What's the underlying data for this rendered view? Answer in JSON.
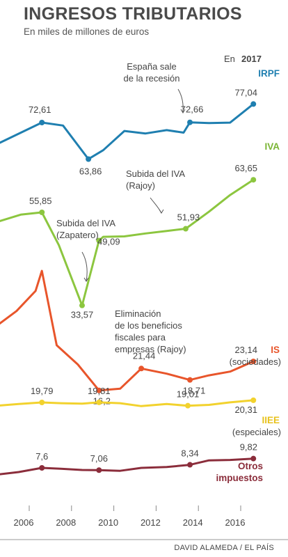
{
  "header": {
    "title": "INGRESOS TRIBUTARIOS",
    "subtitle": "En miles de millones de euros"
  },
  "credit": "DAVID ALAMEDA / EL PAÍS",
  "chart_data": {
    "type": "line",
    "title": "INGRESOS TRIBUTARIOS",
    "subtitle": "En miles de millones de euros",
    "year_header": {
      "prefix": "En",
      "year": "2017"
    },
    "x_ticks": [
      "2006",
      "2008",
      "2010",
      "2012",
      "2014",
      "2016"
    ],
    "x": [
      "2004-I",
      "2004-II",
      "2005-I",
      "2005-II",
      "2006-I",
      "2006-II",
      "2007-I",
      "2007-II",
      "2008-I",
      "2008-II",
      "2009-I",
      "2009-II",
      "2010-I",
      "2010-II",
      "2011-I",
      "2011-II",
      "2012-I",
      "2012-II",
      "2013-I",
      "2013-II",
      "2014-I",
      "2014-II",
      "2015-I",
      "2015-II",
      "2016-I",
      "2016-II"
    ],
    "series": [
      {
        "key": "irpf",
        "name": "IRPF",
        "color": "#1f7fb0",
        "points": [
          [
            2004.5,
            67.5
          ],
          [
            2006.6,
            72.61
          ],
          [
            2007.6,
            71.9
          ],
          [
            2008.8,
            63.86
          ],
          [
            2009.5,
            66.0
          ],
          [
            2010.5,
            70.6
          ],
          [
            2011.5,
            70.0
          ],
          [
            2012.5,
            70.8
          ],
          [
            2013.3,
            70.2
          ],
          [
            2013.6,
            72.66
          ],
          [
            2014.5,
            72.5
          ],
          [
            2015.5,
            72.6
          ],
          [
            2016.6,
            77.04
          ]
        ],
        "labeled": [
          [
            2006.6,
            "72,61"
          ],
          [
            2008.8,
            "63,86"
          ],
          [
            2013.6,
            "72,66"
          ],
          [
            2016.6,
            "77,04"
          ]
        ]
      },
      {
        "key": "iva",
        "name": "IVA",
        "color": "#8cc63f",
        "points": [
          [
            2004.5,
            53.6
          ],
          [
            2005.6,
            55.3
          ],
          [
            2006.6,
            55.85
          ],
          [
            2007.4,
            48.0
          ],
          [
            2008.5,
            33.57
          ],
          [
            2009.3,
            49.09
          ],
          [
            2009.5,
            50.0
          ],
          [
            2010.5,
            50.1
          ],
          [
            2011.5,
            50.8
          ],
          [
            2012.5,
            51.4
          ],
          [
            2013.4,
            51.93
          ],
          [
            2014.5,
            56.0
          ],
          [
            2015.5,
            60.0
          ],
          [
            2016.6,
            63.65
          ]
        ],
        "labeled": [
          [
            2006.6,
            "55,85"
          ],
          [
            2008.5,
            "33,57"
          ],
          [
            2009.3,
            "49,09"
          ],
          [
            2013.4,
            "51,93"
          ],
          [
            2016.6,
            "63,65"
          ]
        ]
      },
      {
        "key": "is",
        "name": "IS",
        "sublabel": "(sociedades)",
        "color": "#e8552b",
        "points": [
          [
            2004.5,
            31.8
          ],
          [
            2005.4,
            35.2
          ],
          [
            2006.3,
            40.0
          ],
          [
            2006.6,
            44.82
          ],
          [
            2007.3,
            27.0
          ],
          [
            2008.3,
            22.4
          ],
          [
            2009.3,
            16.2
          ],
          [
            2010.3,
            16.6
          ],
          [
            2011.3,
            21.44
          ],
          [
            2012.5,
            20.2
          ],
          [
            2013.6,
            18.71
          ],
          [
            2014.5,
            19.8
          ],
          [
            2015.5,
            20.7
          ],
          [
            2016.6,
            23.14
          ]
        ],
        "labeled": [
          [
            2009.3,
            "16,2"
          ],
          [
            2011.3,
            "21,44"
          ],
          [
            2013.6,
            "18,71"
          ],
          [
            2016.6,
            "23,14"
          ]
        ]
      },
      {
        "key": "iiee",
        "name": "IIEE",
        "sublabel": "(especiales)",
        "color": "#f2d22e",
        "points": [
          [
            2004.5,
            19.0
          ],
          [
            2005.5,
            19.4
          ],
          [
            2006.6,
            19.79
          ],
          [
            2007.5,
            19.6
          ],
          [
            2008.5,
            19.5
          ],
          [
            2009.3,
            19.81
          ],
          [
            2010.3,
            19.6
          ],
          [
            2011.3,
            18.9
          ],
          [
            2012.5,
            19.4
          ],
          [
            2013.5,
            19.01
          ],
          [
            2014.5,
            19.2
          ],
          [
            2015.5,
            19.8
          ],
          [
            2016.6,
            20.31
          ]
        ],
        "labeled": [
          [
            2006.6,
            "19,79"
          ],
          [
            2009.3,
            "19,81"
          ],
          [
            2013.5,
            "19,01"
          ],
          [
            2016.6,
            "20,31"
          ]
        ]
      },
      {
        "key": "otros",
        "name": "Otros impuestos",
        "color": "#8b2d3b",
        "points": [
          [
            2004.5,
            6.0
          ],
          [
            2005.5,
            6.6
          ],
          [
            2006.6,
            7.6
          ],
          [
            2007.5,
            7.4
          ],
          [
            2008.5,
            7.1
          ],
          [
            2009.3,
            7.06
          ],
          [
            2010.3,
            6.9
          ],
          [
            2011.3,
            7.6
          ],
          [
            2012.5,
            7.8
          ],
          [
            2013.6,
            8.34
          ],
          [
            2014.5,
            9.4
          ],
          [
            2015.5,
            9.5
          ],
          [
            2016.6,
            9.82
          ]
        ],
        "labeled": [
          [
            2006.6,
            "7,6"
          ],
          [
            2009.3,
            "7,06"
          ],
          [
            2013.6,
            "8,34"
          ],
          [
            2016.6,
            "9,82"
          ]
        ]
      }
    ],
    "annotations": [
      {
        "key": "recesion",
        "lines": [
          "España sale",
          "de la recesión"
        ]
      },
      {
        "key": "iva_rajoy",
        "lines": [
          "Subida del IVA",
          "(Rajoy)"
        ]
      },
      {
        "key": "iva_zapatero",
        "lines": [
          "Subida del IVA",
          "(Zapatero)"
        ]
      },
      {
        "key": "beneficios",
        "lines": [
          "Eliminación",
          "de los beneficios",
          "fiscales para",
          "empresas (Rajoy)"
        ]
      }
    ],
    "xlabel": "",
    "ylabel": "",
    "grid": false,
    "legend": "inline"
  }
}
